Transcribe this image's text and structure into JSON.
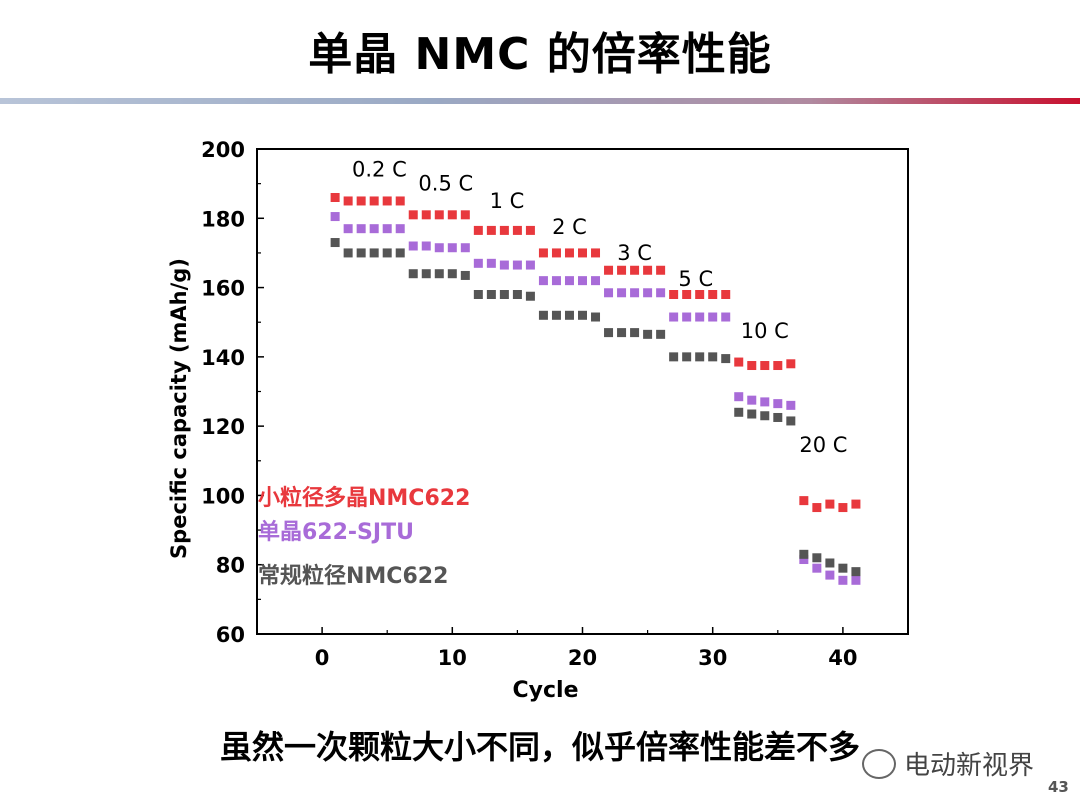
{
  "slide": {
    "title": "单晶 NMC 的倍率性能",
    "subtitle": "虽然一次颗粒大小不同，似乎倍率性能差不多",
    "watermark": "电动新视界",
    "page_number": "43"
  },
  "chart_data": {
    "type": "scatter",
    "title": "",
    "xlabel": "Cycle",
    "ylabel": "Specific capacity (mAh/g)",
    "xlim": [
      -5,
      45
    ],
    "ylim": [
      60,
      200
    ],
    "xticks": [
      0,
      10,
      20,
      30,
      40
    ],
    "yticks": [
      60,
      80,
      100,
      120,
      140,
      160,
      180,
      200
    ],
    "grid": false,
    "legend_position": "left-middle",
    "rate_labels": [
      {
        "text": "0.2 C",
        "x": 4.4,
        "y": 192
      },
      {
        "text": "0.5 C",
        "x": 9.5,
        "y": 188
      },
      {
        "text": "1 C",
        "x": 14.2,
        "y": 183
      },
      {
        "text": "2 C",
        "x": 19,
        "y": 175.5
      },
      {
        "text": "3 C",
        "x": 24,
        "y": 168
      },
      {
        "text": "5 C",
        "x": 28.7,
        "y": 160.5
      },
      {
        "text": "10 C",
        "x": 34,
        "y": 145.5
      },
      {
        "text": "20 C",
        "x": 38.5,
        "y": 112.5
      }
    ],
    "series": [
      {
        "name": "小粒径多晶NMC622",
        "color": "#e8383d",
        "x": [
          1,
          2,
          3,
          4,
          5,
          6,
          7,
          8,
          9,
          10,
          11,
          12,
          13,
          14,
          15,
          16,
          17,
          18,
          19,
          20,
          21,
          22,
          23,
          24,
          25,
          26,
          27,
          28,
          29,
          30,
          31,
          32,
          33,
          34,
          35,
          36,
          37,
          38,
          39,
          40,
          41
        ],
        "values": [
          186,
          185,
          185,
          185,
          185,
          185,
          181,
          181,
          181,
          181,
          181,
          176.5,
          176.5,
          176.5,
          176.5,
          176.5,
          170,
          170,
          170,
          170,
          170,
          165,
          165,
          165,
          165,
          165,
          158,
          158,
          158,
          158,
          158,
          138.5,
          137.5,
          137.5,
          137.5,
          138,
          98.5,
          96.5,
          97.5,
          96.5,
          97.5
        ]
      },
      {
        "name": "单晶622-SJTU",
        "color": "#a86bd8",
        "x": [
          1,
          2,
          3,
          4,
          5,
          6,
          7,
          8,
          9,
          10,
          11,
          12,
          13,
          14,
          15,
          16,
          17,
          18,
          19,
          20,
          21,
          22,
          23,
          24,
          25,
          26,
          27,
          28,
          29,
          30,
          31,
          32,
          33,
          34,
          35,
          36,
          37,
          38,
          39,
          40,
          41
        ],
        "values": [
          180.5,
          177,
          177,
          177,
          177,
          177,
          172,
          172,
          171.5,
          171.5,
          171.5,
          167,
          167,
          166.5,
          166.5,
          166.5,
          162,
          162,
          162,
          162,
          162,
          158.5,
          158.5,
          158.5,
          158.5,
          158.5,
          151.5,
          151.5,
          151.5,
          151.5,
          151.5,
          128.5,
          127.5,
          127,
          126.5,
          126,
          81.5,
          79,
          77,
          75.5,
          75.5
        ]
      },
      {
        "name": "常规粒径NMC622",
        "color": "#555555",
        "x": [
          1,
          2,
          3,
          4,
          5,
          6,
          7,
          8,
          9,
          10,
          11,
          12,
          13,
          14,
          15,
          16,
          17,
          18,
          19,
          20,
          21,
          22,
          23,
          24,
          25,
          26,
          27,
          28,
          29,
          30,
          31,
          32,
          33,
          34,
          35,
          36,
          37,
          38,
          39,
          40,
          41
        ],
        "values": [
          173,
          170,
          170,
          170,
          170,
          170,
          164,
          164,
          164,
          164,
          163.5,
          158,
          158,
          158,
          158,
          157.5,
          152,
          152,
          152,
          152,
          151.5,
          147,
          147,
          147,
          146.5,
          146.5,
          140,
          140,
          140,
          140,
          139.5,
          124,
          123.5,
          123,
          122.5,
          121.5,
          83,
          82,
          80.5,
          79,
          78
        ]
      }
    ]
  }
}
